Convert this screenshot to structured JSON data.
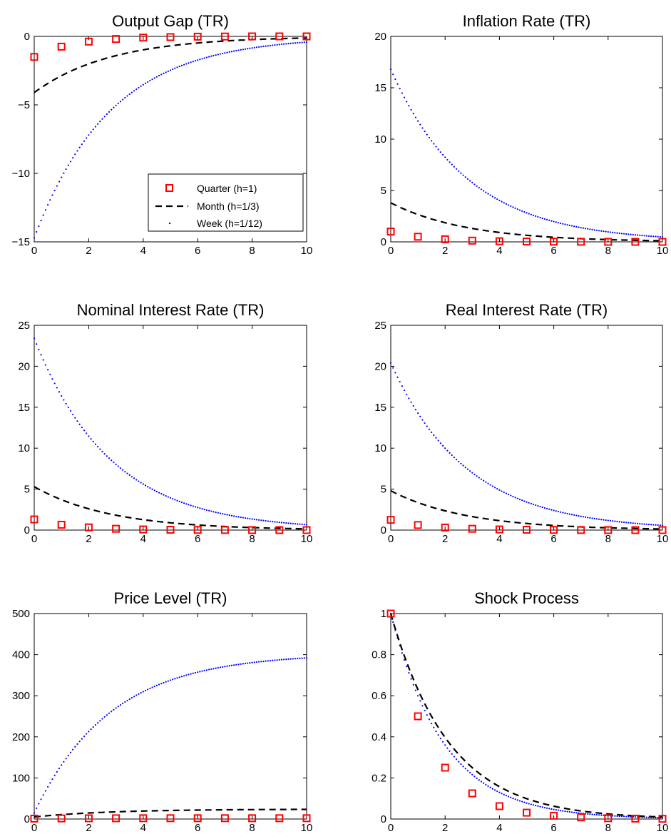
{
  "colors": {
    "quarter": "#ff0000",
    "month": "#000000",
    "week": "#0000ff",
    "axes": "#000000",
    "background": "#ffffff"
  },
  "legend": {
    "location": "bottom-right of first panel",
    "entries": [
      "Quarter (h=1)",
      "Month (h=1/3)",
      "Week (h=1/12)"
    ]
  },
  "chart_data": [
    {
      "type": "line",
      "title": "Output Gap (TR)",
      "xlim": [
        0,
        10
      ],
      "ylim": [
        -15,
        0
      ],
      "xticks": [
        0,
        2,
        4,
        6,
        8,
        10
      ],
      "yticks": [
        -15,
        -10,
        -5,
        0
      ],
      "legend": true,
      "series": [
        {
          "name": "Quarter (h=1)",
          "style": "square-markers",
          "x": [
            0,
            1,
            2,
            3,
            4,
            5,
            6,
            7,
            8,
            9,
            10
          ],
          "y": [
            -1.5,
            -0.75,
            -0.38,
            -0.19,
            -0.09,
            -0.05,
            -0.02,
            -0.01,
            0.0,
            0.0,
            0.0
          ]
        },
        {
          "name": "Month (h=1/3)",
          "style": "dashed",
          "decay": 0.7,
          "start": -4.1
        },
        {
          "name": "Week (h=1/12)",
          "style": "dotted",
          "decay": 0.7,
          "start": -14.7
        }
      ]
    },
    {
      "type": "line",
      "title": "Inflation Rate (TR)",
      "xlim": [
        0,
        10
      ],
      "ylim": [
        0,
        20
      ],
      "xticks": [
        0,
        2,
        4,
        6,
        8,
        10
      ],
      "yticks": [
        0,
        5,
        10,
        15,
        20
      ],
      "series": [
        {
          "name": "Quarter (h=1)",
          "style": "square-markers",
          "x": [
            0,
            1,
            2,
            3,
            4,
            5,
            6,
            7,
            8,
            9,
            10
          ],
          "y": [
            1.0,
            0.5,
            0.25,
            0.12,
            0.06,
            0.03,
            0.02,
            0.01,
            0.0,
            0.0,
            0.0
          ]
        },
        {
          "name": "Month (h=1/3)",
          "style": "dashed",
          "decay": 0.7,
          "start": 3.8
        },
        {
          "name": "Week (h=1/12)",
          "style": "dotted",
          "decay": 0.7,
          "start": 16.8
        }
      ]
    },
    {
      "type": "line",
      "title": "Nominal Interest Rate (TR)",
      "xlim": [
        0,
        10
      ],
      "ylim": [
        0,
        25
      ],
      "xticks": [
        0,
        2,
        4,
        6,
        8,
        10
      ],
      "yticks": [
        0,
        5,
        10,
        15,
        20,
        25
      ],
      "series": [
        {
          "name": "Quarter (h=1)",
          "style": "square-markers",
          "x": [
            0,
            1,
            2,
            3,
            4,
            5,
            6,
            7,
            8,
            9,
            10
          ],
          "y": [
            1.3,
            0.65,
            0.33,
            0.16,
            0.08,
            0.04,
            0.02,
            0.01,
            0.0,
            0.0,
            0.0
          ]
        },
        {
          "name": "Month (h=1/3)",
          "style": "dashed",
          "decay": 0.7,
          "start": 5.3
        },
        {
          "name": "Week (h=1/12)",
          "style": "dotted",
          "decay": 0.7,
          "start": 23.4
        }
      ]
    },
    {
      "type": "line",
      "title": "Real Interest Rate (TR)",
      "xlim": [
        0,
        10
      ],
      "ylim": [
        0,
        25
      ],
      "xticks": [
        0,
        2,
        4,
        6,
        8,
        10
      ],
      "yticks": [
        0,
        5,
        10,
        15,
        20,
        25
      ],
      "series": [
        {
          "name": "Quarter (h=1)",
          "style": "square-markers",
          "x": [
            0,
            1,
            2,
            3,
            4,
            5,
            6,
            7,
            8,
            9,
            10
          ],
          "y": [
            1.25,
            0.62,
            0.31,
            0.16,
            0.08,
            0.04,
            0.02,
            0.01,
            0.0,
            0.0,
            0.0
          ]
        },
        {
          "name": "Month (h=1/3)",
          "style": "dashed",
          "decay": 0.7,
          "start": 4.8
        },
        {
          "name": "Week (h=1/12)",
          "style": "dotted",
          "decay": 0.7,
          "start": 20.4
        }
      ]
    },
    {
      "type": "line",
      "title": "Price Level (TR)",
      "xlim": [
        0,
        10
      ],
      "ylim": [
        0,
        500
      ],
      "xticks": [
        0,
        2,
        4,
        6,
        8,
        10
      ],
      "yticks": [
        0,
        100,
        200,
        300,
        400,
        500
      ],
      "series": [
        {
          "name": "Quarter (h=1)",
          "style": "square-markers",
          "x": [
            0,
            1,
            2,
            3,
            4,
            5,
            6,
            7,
            8,
            9,
            10
          ],
          "y": [
            1.0,
            1.5,
            1.75,
            1.9,
            1.95,
            2.0,
            2.0,
            2.0,
            2.0,
            2.0,
            2.0
          ]
        },
        {
          "name": "Month (h=1/3)",
          "style": "dashed",
          "growth": 0.7,
          "start": 5,
          "end": 24
        },
        {
          "name": "Week (h=1/12)",
          "style": "dotted",
          "growth": 0.7,
          "start": 15,
          "end": 403
        }
      ]
    },
    {
      "type": "line",
      "title": "Shock Process",
      "xlim": [
        0,
        10
      ],
      "ylim": [
        0,
        1
      ],
      "xticks": [
        0,
        2,
        4,
        6,
        8,
        10
      ],
      "yticks": [
        0,
        0.2,
        0.4,
        0.6,
        0.8,
        1
      ],
      "series": [
        {
          "name": "Quarter (h=1)",
          "style": "square-markers",
          "x": [
            0,
            1,
            2,
            3,
            4,
            5,
            6,
            7,
            8,
            9,
            10
          ],
          "y": [
            1.0,
            0.5,
            0.25,
            0.125,
            0.0625,
            0.031,
            0.016,
            0.008,
            0.004,
            0.002,
            0.001
          ]
        },
        {
          "name": "Month (h=1/3)",
          "style": "dashed",
          "decay": 0.63,
          "start": 1.0
        },
        {
          "name": "Week (h=1/12)",
          "style": "dotted",
          "decay": 0.6,
          "start": 1.0
        }
      ]
    }
  ]
}
